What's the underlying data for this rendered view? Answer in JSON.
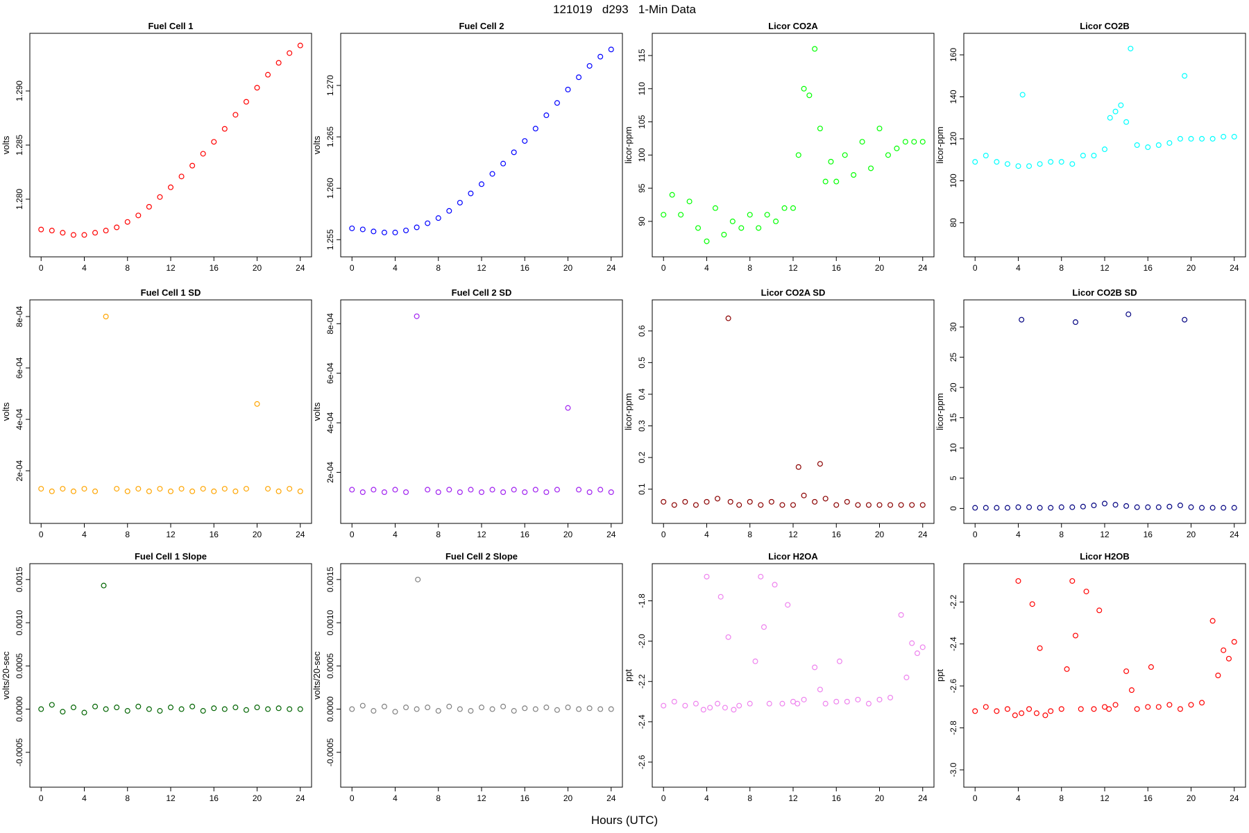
{
  "page": {
    "title": "121019   d293   1-Min Data",
    "xlabel": "Hours (UTC)"
  },
  "chart_data": [
    {
      "type": "scatter",
      "title": "Fuel Cell 1",
      "ylabel": "volts",
      "color": "#ff0000",
      "xlim": [
        0,
        24
      ],
      "ylim": [
        1.2755,
        1.2945
      ],
      "xticks": [
        "0",
        "4",
        "8",
        "12",
        "16",
        "20",
        "24"
      ],
      "yticks": [
        "1.280",
        "1.285",
        "1.290"
      ],
      "x": [
        0,
        1,
        2,
        3,
        4,
        5,
        6,
        7,
        8,
        9,
        10,
        11,
        12,
        13,
        14,
        15,
        16,
        17,
        18,
        19,
        20,
        21,
        22,
        23,
        24
      ],
      "y": [
        1.2772,
        1.2771,
        1.2769,
        1.2767,
        1.2767,
        1.2769,
        1.2771,
        1.2774,
        1.2779,
        1.2785,
        1.2793,
        1.2802,
        1.2811,
        1.2821,
        1.2831,
        1.2842,
        1.2853,
        1.2865,
        1.2878,
        1.289,
        1.2903,
        1.2915,
        1.2926,
        1.2935,
        1.2942
      ]
    },
    {
      "type": "scatter",
      "title": "Fuel Cell 2",
      "ylabel": "volts",
      "color": "#0000ff",
      "xlim": [
        0,
        24
      ],
      "ylim": [
        1.2542,
        1.2742
      ],
      "xticks": [
        "0",
        "4",
        "8",
        "12",
        "16",
        "20",
        "24"
      ],
      "yticks": [
        "1.255",
        "1.260",
        "1.265",
        "1.270"
      ],
      "x": [
        0,
        1,
        2,
        3,
        4,
        5,
        6,
        7,
        8,
        9,
        10,
        11,
        12,
        13,
        14,
        15,
        16,
        17,
        18,
        19,
        20,
        21,
        22,
        23,
        24
      ],
      "y": [
        1.2561,
        1.256,
        1.2558,
        1.2557,
        1.2557,
        1.2559,
        1.2562,
        1.2566,
        1.2571,
        1.2578,
        1.2586,
        1.2595,
        1.2604,
        1.2614,
        1.2624,
        1.2635,
        1.2646,
        1.2658,
        1.2671,
        1.2683,
        1.2696,
        1.2708,
        1.2719,
        1.2728,
        1.2735
      ]
    },
    {
      "type": "scatter",
      "title": "Licor CO2A",
      "ylabel": "licor-ppm",
      "color": "#00ff00",
      "xlim": [
        0,
        24
      ],
      "ylim": [
        86,
        117
      ],
      "xticks": [
        "0",
        "4",
        "8",
        "12",
        "16",
        "20",
        "24"
      ],
      "yticks": [
        "90",
        "95",
        "100",
        "105",
        "110",
        "115"
      ],
      "x": [
        0,
        0.8,
        1.6,
        2.4,
        3.2,
        4,
        4.8,
        5.6,
        6.4,
        7.2,
        8,
        8.8,
        9.6,
        10.4,
        11.2,
        12,
        12.5,
        13,
        13.5,
        14,
        14.5,
        15,
        15.5,
        16,
        16.8,
        17.6,
        18.4,
        19.2,
        20,
        20.8,
        21.6,
        22.4,
        23.2,
        24
      ],
      "y": [
        91,
        94,
        91,
        93,
        89,
        87,
        92,
        88,
        90,
        89,
        91,
        89,
        91,
        90,
        92,
        92,
        100,
        110,
        109,
        116,
        104,
        96,
        99,
        96,
        100,
        97,
        102,
        98,
        104,
        100,
        101,
        102,
        102,
        102
      ]
    },
    {
      "type": "scatter",
      "title": "Licor CO2B",
      "ylabel": "licor-ppm",
      "color": "#00ffff",
      "xlim": [
        0,
        24
      ],
      "ylim": [
        68,
        166
      ],
      "xticks": [
        "0",
        "4",
        "8",
        "12",
        "16",
        "20",
        "24"
      ],
      "yticks": [
        "80",
        "100",
        "120",
        "140",
        "160"
      ],
      "x": [
        0,
        1,
        2,
        3,
        4,
        4.4,
        5,
        6,
        7,
        8,
        9,
        10,
        11,
        12,
        12.5,
        13,
        13.5,
        14,
        14.4,
        15,
        16,
        17,
        18,
        19,
        19.4,
        20,
        21,
        22,
        23,
        24
      ],
      "y": [
        109,
        112,
        109,
        108,
        107,
        141,
        107,
        108,
        109,
        109,
        108,
        112,
        112,
        115,
        130,
        133,
        136,
        128,
        163,
        117,
        116,
        117,
        118,
        120,
        150,
        120,
        120,
        120,
        121,
        121
      ]
    },
    {
      "type": "scatter",
      "title": "Fuel Cell 1 SD",
      "ylabel": "volts",
      "color": "#ffa500",
      "xlim": [
        0,
        24
      ],
      "ylim": [
        3e-05,
        0.00083
      ],
      "xticks": [
        "0",
        "4",
        "8",
        "12",
        "16",
        "20",
        "24"
      ],
      "yticks": [
        "2e-04",
        "4e-04",
        "6e-04",
        "8e-04"
      ],
      "x": [
        0,
        1,
        2,
        3,
        4,
        5,
        6,
        7,
        8,
        9,
        10,
        11,
        12,
        13,
        14,
        15,
        16,
        17,
        18,
        19,
        20,
        21,
        22,
        23,
        24
      ],
      "y": [
        0.00013,
        0.00012,
        0.00013,
        0.00012,
        0.00013,
        0.00012,
        0.0008,
        0.00013,
        0.00012,
        0.00013,
        0.00012,
        0.00013,
        0.00012,
        0.00013,
        0.00012,
        0.00013,
        0.00012,
        0.00013,
        0.00012,
        0.00013,
        0.00046,
        0.00013,
        0.00012,
        0.00013,
        0.00012
      ]
    },
    {
      "type": "scatter",
      "title": "Fuel Cell 2 SD",
      "ylabel": "volts",
      "color": "#a020f0",
      "xlim": [
        0,
        24
      ],
      "ylim": [
        3e-05,
        0.00086
      ],
      "xticks": [
        "0",
        "4",
        "8",
        "12",
        "16",
        "20",
        "24"
      ],
      "yticks": [
        "2e-04",
        "4e-04",
        "6e-04",
        "8e-04"
      ],
      "x": [
        0,
        1,
        2,
        3,
        4,
        5,
        6,
        7,
        8,
        9,
        10,
        11,
        12,
        13,
        14,
        15,
        16,
        17,
        18,
        19,
        20,
        21,
        22,
        23,
        24
      ],
      "y": [
        0.00013,
        0.00012,
        0.00013,
        0.00012,
        0.00013,
        0.00012,
        0.00083,
        0.00013,
        0.00012,
        0.00013,
        0.00012,
        0.00013,
        0.00012,
        0.00013,
        0.00012,
        0.00013,
        0.00012,
        0.00013,
        0.00012,
        0.00013,
        0.00046,
        0.00013,
        0.00012,
        0.00013,
        0.00012
      ]
    },
    {
      "type": "scatter",
      "title": "Licor CO2A SD",
      "ylabel": "licor-ppm",
      "color": "#8b0000",
      "xlim": [
        0,
        24
      ],
      "ylim": [
        0.02,
        0.67
      ],
      "xticks": [
        "0",
        "4",
        "8",
        "12",
        "16",
        "20",
        "24"
      ],
      "yticks": [
        "0.1",
        "0.2",
        "0.3",
        "0.4",
        "0.5",
        "0.6"
      ],
      "x": [
        0,
        1,
        2,
        3,
        4,
        5,
        6,
        6.2,
        7,
        8,
        9,
        10,
        11,
        12,
        12.5,
        13,
        14,
        14.5,
        15,
        16,
        17,
        18,
        19,
        20,
        21,
        22,
        23,
        24
      ],
      "y": [
        0.06,
        0.05,
        0.06,
        0.05,
        0.06,
        0.07,
        0.64,
        0.06,
        0.05,
        0.06,
        0.05,
        0.06,
        0.05,
        0.05,
        0.17,
        0.08,
        0.06,
        0.18,
        0.07,
        0.05,
        0.06,
        0.05,
        0.05,
        0.05,
        0.05,
        0.05,
        0.05,
        0.05
      ]
    },
    {
      "type": "scatter",
      "title": "Licor CO2B SD",
      "ylabel": "licor-ppm",
      "color": "#000080",
      "xlim": [
        0,
        24
      ],
      "ylim": [
        -1,
        33
      ],
      "xticks": [
        "0",
        "4",
        "8",
        "12",
        "16",
        "20",
        "24"
      ],
      "yticks": [
        "0",
        "5",
        "10",
        "15",
        "20",
        "25",
        "30"
      ],
      "x": [
        0,
        1,
        2,
        3,
        4,
        4.3,
        5,
        6,
        7,
        8,
        9,
        9.3,
        10,
        11,
        12,
        13,
        14,
        14.2,
        15,
        16,
        17,
        18,
        19,
        19.4,
        20,
        21,
        22,
        23,
        24
      ],
      "y": [
        0.1,
        0.1,
        0.1,
        0.1,
        0.2,
        31.2,
        0.2,
        0.1,
        0.1,
        0.2,
        0.2,
        30.8,
        0.3,
        0.5,
        0.8,
        0.6,
        0.4,
        32.1,
        0.2,
        0.2,
        0.2,
        0.3,
        0.5,
        31.2,
        0.2,
        0.1,
        0.1,
        0.1,
        0.1
      ]
    },
    {
      "type": "scatter",
      "title": "Fuel Cell 1 Slope",
      "ylabel": "volts/20-sec",
      "color": "#006400",
      "xlim": [
        0,
        24
      ],
      "ylim": [
        -0.0008,
        0.00158
      ],
      "xticks": [
        "0",
        "4",
        "8",
        "12",
        "16",
        "20",
        "24"
      ],
      "yticks": [
        "-0.0005",
        "0.0000",
        "0.0005",
        "0.0010",
        "0.0015"
      ],
      "x": [
        0,
        1,
        2,
        3,
        4,
        5,
        5.8,
        6,
        7,
        8,
        9,
        10,
        11,
        12,
        13,
        14,
        15,
        16,
        17,
        18,
        19,
        20,
        21,
        22,
        23,
        24
      ],
      "y": [
        0,
        5e-05,
        -3e-05,
        2e-05,
        -4e-05,
        3e-05,
        0.00143,
        0,
        2e-05,
        -2e-05,
        3e-05,
        0,
        -2e-05,
        2e-05,
        0,
        3e-05,
        -2e-05,
        1e-05,
        0,
        2e-05,
        -1e-05,
        2e-05,
        0,
        1e-05,
        0,
        0
      ]
    },
    {
      "type": "scatter",
      "title": "Fuel Cell 2 Slope",
      "ylabel": "volts/20-sec",
      "color": "#808080",
      "xlim": [
        0,
        24
      ],
      "ylim": [
        -0.0008,
        0.00158
      ],
      "xticks": [
        "0",
        "4",
        "8",
        "12",
        "16",
        "20",
        "24"
      ],
      "yticks": [
        "-0.0005",
        "0.0000",
        "0.0005",
        "0.0010",
        "0.0015"
      ],
      "x": [
        0,
        1,
        2,
        3,
        4,
        5,
        6,
        6.1,
        7,
        8,
        9,
        10,
        11,
        12,
        13,
        14,
        15,
        16,
        17,
        18,
        19,
        20,
        21,
        22,
        23,
        24
      ],
      "y": [
        0,
        4e-05,
        -2e-05,
        3e-05,
        -3e-05,
        2e-05,
        0,
        0.0015,
        2e-05,
        -2e-05,
        3e-05,
        0,
        -2e-05,
        2e-05,
        0,
        3e-05,
        -2e-05,
        1e-05,
        0,
        2e-05,
        -1e-05,
        2e-05,
        0,
        1e-05,
        0,
        0
      ]
    },
    {
      "type": "scatter",
      "title": "Licor H2OA",
      "ylabel": "ppt",
      "color": "#ee82ee",
      "xlim": [
        0,
        24
      ],
      "ylim": [
        -2.68,
        -1.66
      ],
      "xticks": [
        "0",
        "4",
        "8",
        "12",
        "16",
        "20",
        "24"
      ],
      "yticks": [
        "-2.6",
        "-2.4",
        "-2.2",
        "-2.0",
        "-1.8"
      ],
      "x": [
        0,
        1,
        2,
        3,
        3.7,
        4,
        4.3,
        5,
        5.3,
        5.7,
        6,
        6.5,
        7,
        8,
        8.5,
        9,
        9.3,
        9.8,
        10.3,
        11,
        11.5,
        12,
        12.4,
        13,
        14,
        14.5,
        15,
        16,
        16.3,
        17,
        18,
        19,
        20,
        21,
        22,
        22.5,
        23,
        23.5,
        24
      ],
      "y": [
        -2.32,
        -2.3,
        -2.32,
        -2.31,
        -2.34,
        -1.68,
        -2.33,
        -2.31,
        -1.78,
        -2.33,
        -1.98,
        -2.34,
        -2.32,
        -2.31,
        -2.1,
        -1.68,
        -1.93,
        -2.31,
        -1.72,
        -2.31,
        -1.82,
        -2.3,
        -2.31,
        -2.29,
        -2.13,
        -2.24,
        -2.31,
        -2.3,
        -2.1,
        -2.3,
        -2.29,
        -2.31,
        -2.29,
        -2.28,
        -1.87,
        -2.18,
        -2.01,
        -2.06,
        -2.03
      ]
    },
    {
      "type": "scatter",
      "title": "Licor H2OB",
      "ylabel": "ppt",
      "color": "#ff0000",
      "xlim": [
        0,
        24
      ],
      "ylim": [
        -3.04,
        -2.06
      ],
      "xticks": [
        "0",
        "4",
        "8",
        "12",
        "16",
        "20",
        "24"
      ],
      "yticks": [
        "-3.0",
        "-2.8",
        "-2.6",
        "-2.4",
        "-2.2"
      ],
      "x": [
        0,
        1,
        2,
        3,
        3.7,
        4,
        4.3,
        5,
        5.3,
        5.7,
        6,
        6.5,
        7,
        8,
        8.5,
        9,
        9.3,
        9.8,
        10.3,
        11,
        11.5,
        12,
        12.4,
        13,
        14,
        14.5,
        15,
        16,
        16.3,
        17,
        18,
        19,
        20,
        21,
        22,
        22.5,
        23,
        23.5,
        24
      ],
      "y": [
        -2.72,
        -2.7,
        -2.72,
        -2.71,
        -2.74,
        -2.1,
        -2.73,
        -2.71,
        -2.21,
        -2.73,
        -2.42,
        -2.74,
        -2.72,
        -2.71,
        -2.52,
        -2.1,
        -2.36,
        -2.71,
        -2.15,
        -2.71,
        -2.24,
        -2.7,
        -2.71,
        -2.69,
        -2.53,
        -2.62,
        -2.71,
        -2.7,
        -2.51,
        -2.7,
        -2.69,
        -2.71,
        -2.69,
        -2.68,
        -2.29,
        -2.55,
        -2.43,
        -2.47,
        -2.39
      ]
    }
  ]
}
